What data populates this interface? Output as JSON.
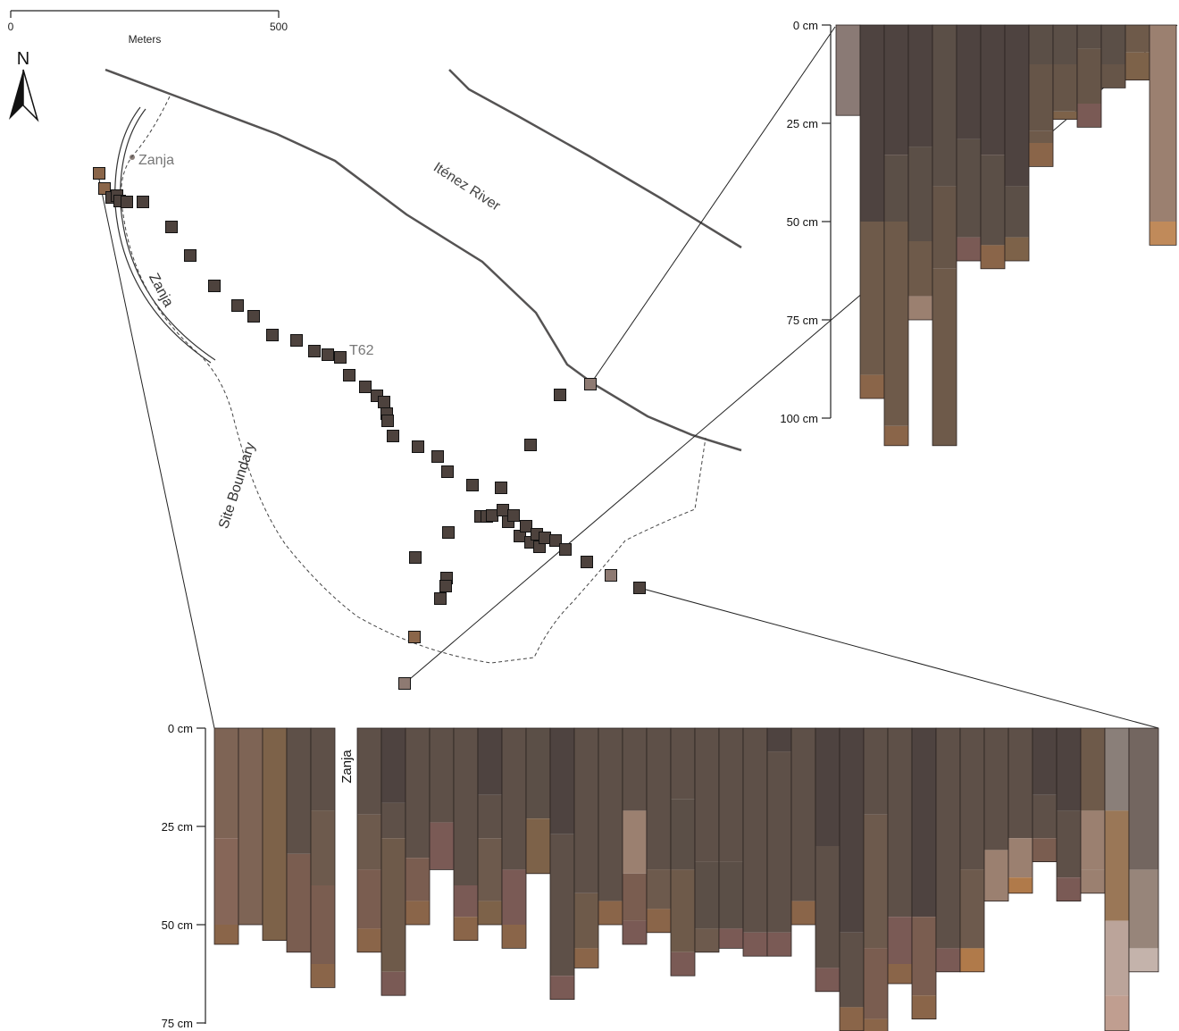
{
  "scale_bar": {
    "start_label": "0",
    "end_label": "500",
    "unit_label": "Meters"
  },
  "north_arrow": {
    "label": "N"
  },
  "map_labels": {
    "river": "Iténez River",
    "zanja_point": "Zanja",
    "zanja_ditch": "Zanja",
    "site_boundary": "Site Boundary",
    "test_unit": "T62"
  },
  "colors": {
    "line": "#555353",
    "dark_unit": "#4d423d",
    "light_unit": "#8e7a72",
    "orange_unit": "#8a6549"
  },
  "right_profile": {
    "axis_labels": [
      "0 cm",
      "25 cm",
      "50 cm",
      "75 cm",
      "100 cm"
    ]
  },
  "bottom_profile": {
    "axis_labels": [
      "0 cm",
      "25 cm",
      "50 cm",
      "75 cm"
    ],
    "gap_label": "Zanja"
  }
}
